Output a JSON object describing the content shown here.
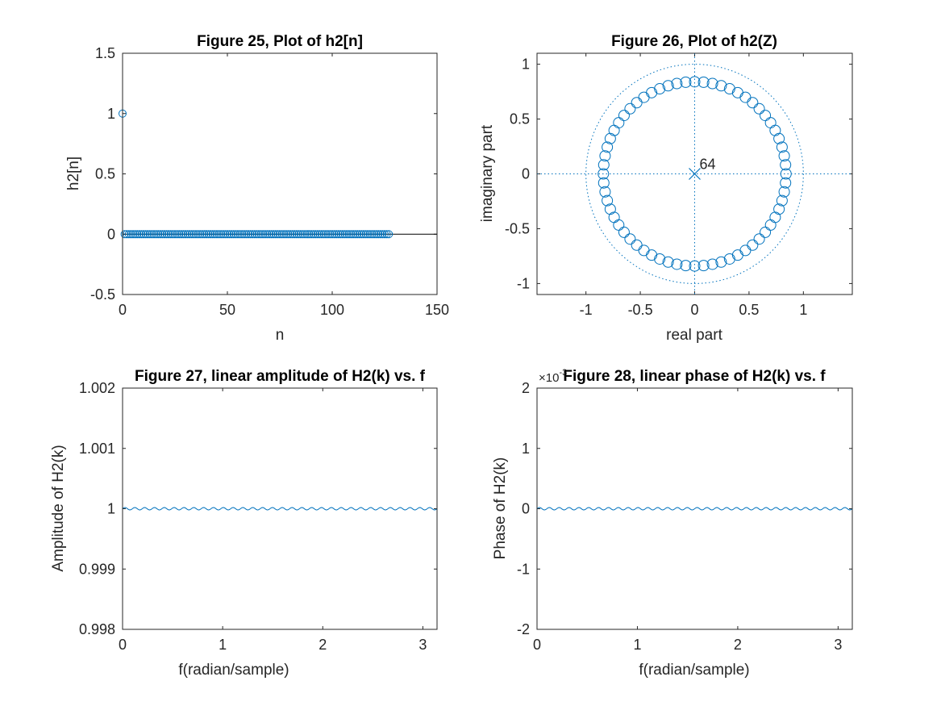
{
  "figure": {
    "background": "#ffffff",
    "series_color": "#0072bd",
    "axis_color": "#262626"
  },
  "chart_data": [
    {
      "id": "fig25",
      "type": "stem",
      "title": "Figure 25, Plot of h2[n]",
      "xlabel": "n",
      "ylabel": "h2[n]",
      "xlim": [
        0,
        150
      ],
      "ylim": [
        -0.5,
        1.5
      ],
      "xticks": [
        0,
        50,
        100,
        150
      ],
      "yticks": [
        -0.5,
        0,
        0.5,
        1,
        1.5
      ],
      "x_tick_labels": [
        "0",
        "50",
        "100",
        "150"
      ],
      "y_tick_labels": [
        "-0.5",
        "0",
        "0.5",
        "1",
        "1.5"
      ],
      "series": [
        {
          "n_start": 0,
          "n_end": 127,
          "impulse_at": 0,
          "impulse_value": 1,
          "other_value": 0
        }
      ],
      "baseline": 0
    },
    {
      "id": "fig26",
      "type": "pole-zero",
      "title": "Figure 26, Plot of h2(Z)",
      "xlabel": "real part",
      "ylabel": "imaginary part",
      "xlim": [
        -1.45,
        1.45
      ],
      "ylim": [
        -1.1,
        1.1
      ],
      "xticks": [
        -1,
        -0.5,
        0,
        0.5,
        1
      ],
      "yticks": [
        -1,
        -0.5,
        0,
        0.5,
        1
      ],
      "x_tick_labels": [
        "-1",
        "-0.5",
        "0",
        "0.5",
        "1"
      ],
      "y_tick_labels": [
        "-1",
        "-0.5",
        "0",
        "0.5",
        "1"
      ],
      "zeros": {
        "count": 64,
        "radius": 0.84
      },
      "poles": {
        "real": 0,
        "imag": 0,
        "multiplicity_label": "64"
      },
      "unit_circle": true
    },
    {
      "id": "fig27",
      "type": "line",
      "title": "Figure 27, linear amplitude of H2(k) vs. f",
      "xlabel": "f(radian/sample)",
      "ylabel": "Amplitude of H2(k)",
      "xlim": [
        0,
        3.1416
      ],
      "ylim": [
        0.998,
        1.002
      ],
      "xticks": [
        0,
        1,
        2,
        3
      ],
      "yticks": [
        0.998,
        0.999,
        1,
        1.001,
        1.002
      ],
      "x_tick_labels": [
        "0",
        "1",
        "2",
        "3"
      ],
      "y_tick_labels": [
        "0.998",
        "0.999",
        "1",
        "1.001",
        "1.002"
      ],
      "series": [
        {
          "center": 1,
          "ripple_amplitude": 2e-05,
          "ripple_cycles": 32,
          "points": 400
        }
      ]
    },
    {
      "id": "fig28",
      "type": "line",
      "title": "Figure 28, linear phase of H2(k) vs. f",
      "xlabel": "f(radian/sample)",
      "ylabel": "Phase of H2(k)",
      "exponent_label": "×10",
      "exponent_power": "-3",
      "xlim": [
        0,
        3.1416
      ],
      "ylim": [
        -2,
        2
      ],
      "xticks": [
        0,
        1,
        2,
        3
      ],
      "yticks": [
        -2,
        -1,
        0,
        1,
        2
      ],
      "x_tick_labels": [
        "0",
        "1",
        "2",
        "3"
      ],
      "y_tick_labels": [
        "-2",
        "-1",
        "0",
        "1",
        "2"
      ],
      "series": [
        {
          "center": 0,
          "ripple_amplitude": 0.02,
          "ripple_cycles": 32,
          "points": 400
        }
      ]
    }
  ]
}
